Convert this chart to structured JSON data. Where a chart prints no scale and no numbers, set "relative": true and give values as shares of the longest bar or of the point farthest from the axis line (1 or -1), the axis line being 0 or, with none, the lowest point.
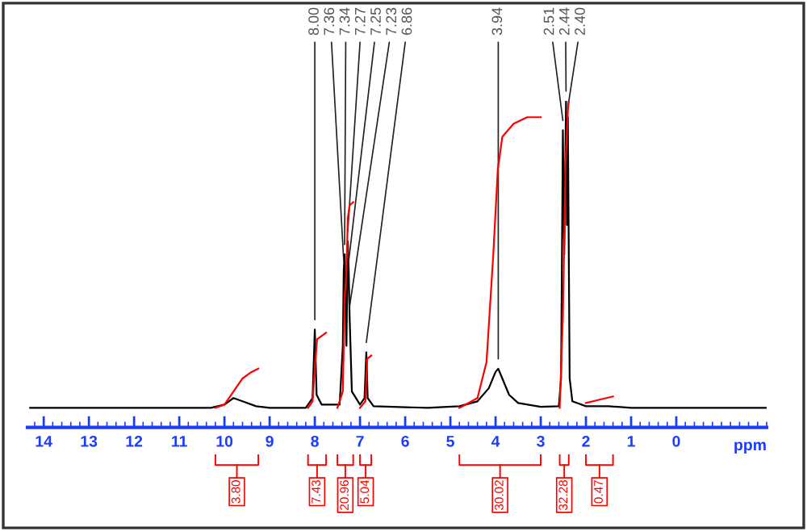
{
  "chart_data": {
    "type": "line",
    "relative": true,
    "xlabel": "ppm",
    "xlim": [
      14.36,
      -2.0
    ],
    "xticks": [
      14,
      13,
      12,
      11,
      10,
      9,
      8,
      7,
      6,
      5,
      4,
      3,
      2,
      1,
      0
    ],
    "grid": false,
    "legend": false,
    "tick_labels": "x",
    "marker": "none",
    "line_style": "solid",
    "series": [
      {
        "color": "#000000",
        "x": [
          14.3,
          10.3,
          10.0,
          9.8,
          9.6,
          9.3,
          9.0,
          8.2,
          8.05,
          8.0,
          7.96,
          7.85,
          7.45,
          7.38,
          7.36,
          7.34,
          7.3,
          7.27,
          7.25,
          7.23,
          7.18,
          7.0,
          6.9,
          6.86,
          6.83,
          6.7,
          5.5,
          4.8,
          4.4,
          4.15,
          4.0,
          3.94,
          3.85,
          3.7,
          3.5,
          3.0,
          2.6,
          2.55,
          2.51,
          2.48,
          2.44,
          2.42,
          2.4,
          2.36,
          2.3,
          2.0,
          1.5,
          1.0,
          -2.0
        ],
        "values": [
          0.06,
          0.06,
          0.07,
          0.09,
          0.08,
          0.065,
          0.06,
          0.06,
          0.09,
          0.3,
          0.1,
          0.07,
          0.07,
          0.25,
          0.48,
          0.53,
          0.25,
          0.57,
          0.48,
          0.34,
          0.11,
          0.07,
          0.09,
          0.23,
          0.09,
          0.065,
          0.06,
          0.065,
          0.08,
          0.12,
          0.17,
          0.18,
          0.15,
          0.1,
          0.075,
          0.063,
          0.065,
          0.15,
          0.91,
          0.53,
          1.0,
          0.62,
          0.95,
          0.15,
          0.08,
          0.065,
          0.065,
          0.06,
          0.06
        ]
      },
      {
        "color": "#ff0000",
        "x": [
          10.2,
          10.0,
          9.8,
          9.6,
          9.4,
          9.25
        ],
        "values": [
          0.06,
          0.07,
          0.11,
          0.15,
          0.17,
          0.18
        ]
      },
      {
        "color": "#ff0000",
        "x": [
          8.15,
          8.05,
          8.0,
          7.95,
          7.85,
          7.75
        ],
        "values": [
          0.06,
          0.08,
          0.18,
          0.27,
          0.28,
          0.29
        ]
      },
      {
        "color": "#ff0000",
        "x": [
          7.5,
          7.38,
          7.34,
          7.3,
          7.27,
          7.23,
          7.15
        ],
        "values": [
          0.06,
          0.11,
          0.39,
          0.48,
          0.64,
          0.68,
          0.69
        ]
      },
      {
        "color": "#ff0000",
        "x": [
          7.0,
          6.88,
          6.86,
          6.84,
          6.75
        ],
        "values": [
          0.06,
          0.08,
          0.15,
          0.21,
          0.22
        ]
      },
      {
        "color": "#ff0000",
        "x": [
          4.8,
          4.4,
          4.2,
          4.05,
          3.95,
          3.85,
          3.6,
          3.3,
          3.0
        ],
        "values": [
          0.06,
          0.09,
          0.2,
          0.53,
          0.79,
          0.89,
          0.93,
          0.95,
          0.95
        ]
      },
      {
        "color": "#ff0000",
        "x": [
          2.58,
          2.51,
          2.45,
          2.4,
          2.38
        ],
        "values": [
          0.06,
          0.34,
          0.81,
          0.97,
          1.0
        ]
      },
      {
        "color": "#ff0000",
        "x": [
          2.0,
          1.7,
          1.4
        ],
        "values": [
          0.075,
          0.085,
          0.095
        ]
      }
    ],
    "annotations": [
      {
        "text": "8.00",
        "x": 8.0,
        "y": 0.3
      },
      {
        "text": "7.36",
        "x": 7.36,
        "y": 0.48
      },
      {
        "text": "7.34",
        "x": 7.34,
        "y": 0.53
      },
      {
        "text": "7.27",
        "x": 7.27,
        "y": 0.57
      },
      {
        "text": "7.25",
        "x": 7.25,
        "y": 0.48
      },
      {
        "text": "7.23",
        "x": 7.23,
        "y": 0.34
      },
      {
        "text": "6.86",
        "x": 6.86,
        "y": 0.23
      },
      {
        "text": "3.94",
        "x": 3.94,
        "y": 0.18
      },
      {
        "text": "2.51",
        "x": 2.51,
        "y": 0.91
      },
      {
        "text": "2.44",
        "x": 2.44,
        "y": 1.0
      },
      {
        "text": "2.40",
        "x": 2.4,
        "y": 0.95
      },
      "3.80",
      "7.43",
      "20.96",
      "5.04",
      "30.02",
      "32.28",
      "0.47"
    ]
  }
}
